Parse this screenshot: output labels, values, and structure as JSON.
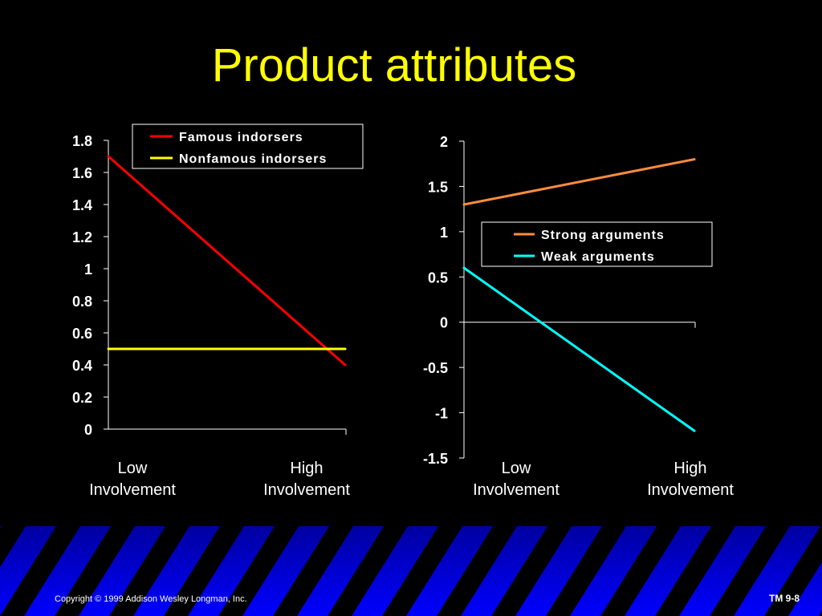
{
  "slide": {
    "title": "Product attributes",
    "copyright": "Copyright © 1999 Addison Wesley Longman, Inc.",
    "page_id": "TM 9-8",
    "title_color": "#FFFF00",
    "background": "#000000",
    "band_color": "#0000FF"
  },
  "chart_data": [
    {
      "type": "line",
      "categories": [
        "Low\nInvolvement",
        "High\nInvolvement"
      ],
      "ylim": [
        0,
        1.8
      ],
      "yticks": [
        "0",
        "0.2",
        "0.4",
        "0.6",
        "0.8",
        "1",
        "1.2",
        "1.4",
        "1.6",
        "1.8"
      ],
      "legend_position": "top-right",
      "series": [
        {
          "name": "Famous indorsers",
          "values": [
            1.7,
            0.4
          ],
          "color": "#FF0000"
        },
        {
          "name": "Nonfamous indorsers",
          "values": [
            0.5,
            0.5
          ],
          "color": "#FFFF00"
        }
      ]
    },
    {
      "type": "line",
      "categories": [
        "Low\nInvolvement",
        "High\nInvolvement"
      ],
      "ylim": [
        -1.5,
        2
      ],
      "yticks": [
        "-1.5",
        "-1",
        "-0.5",
        "0",
        "0.5",
        "1",
        "1.5",
        "2"
      ],
      "legend_position": "center-right",
      "series": [
        {
          "name": "Strong arguments",
          "values": [
            1.3,
            1.8
          ],
          "color": "#FF8C3C"
        },
        {
          "name": "Weak arguments",
          "values": [
            0.6,
            -1.2
          ],
          "color": "#00FFFF"
        }
      ]
    }
  ]
}
